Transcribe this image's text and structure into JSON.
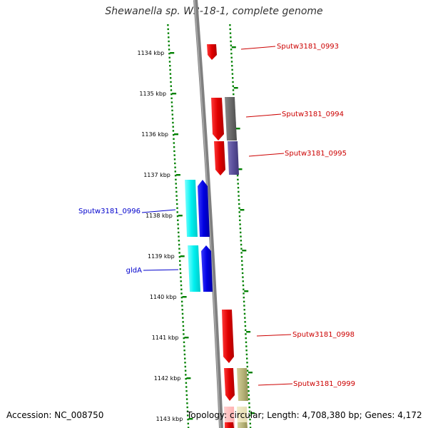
{
  "title": "Shewanella sp. W3-18-1, complete genome",
  "accession": "Accession: NC_008750",
  "topology": "Topology: circular; Length: 4,708,380 bp; Genes: 4,172",
  "colors": {
    "ruler": "#008000",
    "backbone": "#808080",
    "forward_gene": "#ff0000",
    "reverse_gene": "#0000ff",
    "cyan_feature": "#00ffff",
    "grey_feature": "#707070",
    "slate_feature": "#5a4f9a",
    "olive_feature": "#b8b47a",
    "forward_label": "#cc0000",
    "reverse_label": "#0000cc"
  },
  "ticks": [
    {
      "label": "1134 kbp",
      "kbp": 1134
    },
    {
      "label": "1135 kbp",
      "kbp": 1135
    },
    {
      "label": "1136 kbp",
      "kbp": 1136
    },
    {
      "label": "1137 kbp",
      "kbp": 1137
    },
    {
      "label": "1138 kbp",
      "kbp": 1138
    },
    {
      "label": "1139 kbp",
      "kbp": 1139
    },
    {
      "label": "1140 kbp",
      "kbp": 1140
    },
    {
      "label": "1141 kbp",
      "kbp": 1141
    },
    {
      "label": "1142 kbp",
      "kbp": 1142
    },
    {
      "label": "1143 kbp",
      "kbp": 1143
    }
  ],
  "genes": [
    {
      "name": "Sputw3181_0993",
      "strand": "forward",
      "labeled": true
    },
    {
      "name": "Sputw3181_0994",
      "strand": "forward",
      "labeled": true
    },
    {
      "name": "Sputw3181_0995",
      "strand": "forward",
      "labeled": true
    },
    {
      "name": "Sputw3181_0996",
      "strand": "reverse",
      "labeled": true
    },
    {
      "name": "gldA",
      "strand": "reverse",
      "labeled": true
    },
    {
      "name": "Sputw3181_0998",
      "strand": "forward",
      "labeled": true
    },
    {
      "name": "Sputw3181_0999",
      "strand": "forward",
      "labeled": true
    }
  ]
}
